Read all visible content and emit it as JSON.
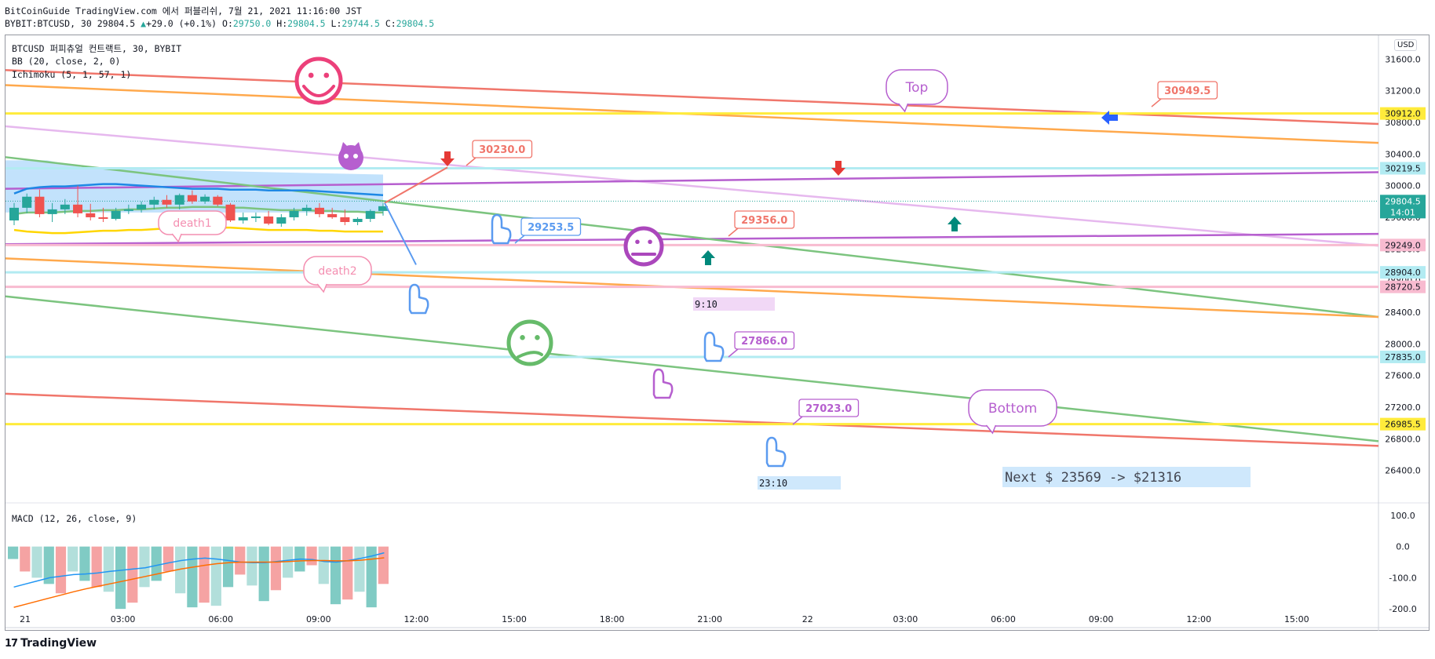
{
  "header": {
    "publish_line": "BitCoinGuide TradingView.com 에서 퍼블리쉬, 7월 21, 2021 11:16:00 JST",
    "symbol": "BYBIT:BTCUSD, 30",
    "last": "29804.5",
    "change_arrow": "▲",
    "change": "+29.0 (+0.1%)",
    "o_label": "O:",
    "o": "29750.0",
    "h_label": "H:",
    "h": "29804.5",
    "l_label": "L:",
    "l": "29744.5",
    "c_label": "C:",
    "c": "29804.5"
  },
  "legend": {
    "title": "BTCUSD 퍼피츄얼 컨트랙트, 30, BYBIT",
    "bb": "BB (20, close, 2, 0)",
    "ichimoku": "Ichimoku (5, 1, 57, 1)",
    "macd": "MACD (12, 26, close, 9)"
  },
  "currency": "USD",
  "brand": {
    "mark": "17",
    "name": "TradingView"
  },
  "colors": {
    "up": "#26a69a",
    "down": "#ef5350",
    "macd_line": "#2196f3",
    "signal_line": "#ff6d00",
    "trend_red": "#f0766b",
    "trend_orange": "#ffa94d",
    "trend_green": "#7cc47f",
    "trend_purple": "#b65fcf",
    "trend_lilac": "#e6b8ee",
    "level_yellow": "#ffeb3b"
  },
  "chart_data": {
    "type": "candlestick",
    "symbol": "BYBIT:BTCUSD",
    "timeframe": "30",
    "ylim": [
      26000,
      31900
    ],
    "y_ticks": [
      26400,
      26800,
      27200,
      27600,
      28000,
      28400,
      28800,
      29200,
      29600,
      30000,
      30400,
      30800,
      31200,
      31600
    ],
    "x_ticks": [
      "21",
      "03:00",
      "06:00",
      "09:00",
      "12:00",
      "15:00",
      "18:00",
      "21:00",
      "22",
      "03:00",
      "06:00",
      "09:00",
      "12:00",
      "15:00"
    ],
    "candles": [
      {
        "o": 29560,
        "h": 29780,
        "l": 29500,
        "c": 29720
      },
      {
        "o": 29720,
        "h": 29900,
        "l": 29650,
        "c": 29860
      },
      {
        "o": 29860,
        "h": 29950,
        "l": 29600,
        "c": 29640
      },
      {
        "o": 29640,
        "h": 29780,
        "l": 29540,
        "c": 29700
      },
      {
        "o": 29700,
        "h": 29830,
        "l": 29640,
        "c": 29760
      },
      {
        "o": 29760,
        "h": 30000,
        "l": 29600,
        "c": 29650
      },
      {
        "o": 29650,
        "h": 29770,
        "l": 29560,
        "c": 29600
      },
      {
        "o": 29600,
        "h": 29720,
        "l": 29540,
        "c": 29580
      },
      {
        "o": 29580,
        "h": 29720,
        "l": 29560,
        "c": 29680
      },
      {
        "o": 29680,
        "h": 29760,
        "l": 29640,
        "c": 29700
      },
      {
        "o": 29700,
        "h": 29800,
        "l": 29660,
        "c": 29760
      },
      {
        "o": 29760,
        "h": 29860,
        "l": 29700,
        "c": 29820
      },
      {
        "o": 29820,
        "h": 29880,
        "l": 29720,
        "c": 29760
      },
      {
        "o": 29760,
        "h": 29900,
        "l": 29700,
        "c": 29880
      },
      {
        "o": 29880,
        "h": 29940,
        "l": 29770,
        "c": 29800
      },
      {
        "o": 29800,
        "h": 29890,
        "l": 29770,
        "c": 29860
      },
      {
        "o": 29860,
        "h": 29880,
        "l": 29740,
        "c": 29760
      },
      {
        "o": 29760,
        "h": 29780,
        "l": 29540,
        "c": 29560
      },
      {
        "o": 29560,
        "h": 29660,
        "l": 29520,
        "c": 29600
      },
      {
        "o": 29600,
        "h": 29660,
        "l": 29540,
        "c": 29610
      },
      {
        "o": 29610,
        "h": 29680,
        "l": 29500,
        "c": 29520
      },
      {
        "o": 29520,
        "h": 29640,
        "l": 29480,
        "c": 29600
      },
      {
        "o": 29600,
        "h": 29720,
        "l": 29560,
        "c": 29680
      },
      {
        "o": 29680,
        "h": 29760,
        "l": 29620,
        "c": 29720
      },
      {
        "o": 29720,
        "h": 29780,
        "l": 29600,
        "c": 29640
      },
      {
        "o": 29640,
        "h": 29720,
        "l": 29580,
        "c": 29600
      },
      {
        "o": 29600,
        "h": 29700,
        "l": 29500,
        "c": 29540
      },
      {
        "o": 29540,
        "h": 29600,
        "l": 29500,
        "c": 29580
      },
      {
        "o": 29580,
        "h": 29700,
        "l": 29540,
        "c": 29680
      },
      {
        "o": 29680,
        "h": 29780,
        "l": 29620,
        "c": 29740
      }
    ],
    "bb_upper": [
      29900,
      29960,
      29980,
      29990,
      29990,
      30000,
      30010,
      30020,
      30020,
      30010,
      30000,
      29990,
      29980,
      29970,
      29960,
      29960,
      29960,
      29950,
      29950,
      29950,
      29940,
      29940,
      29940,
      29940,
      29930,
      29920,
      29910,
      29900,
      29890,
      29880
    ],
    "bb_middle": [
      29640,
      29660,
      29660,
      29660,
      29670,
      29680,
      29680,
      29690,
      29690,
      29700,
      29700,
      29710,
      29720,
      29720,
      29730,
      29730,
      29730,
      29720,
      29720,
      29710,
      29700,
      29690,
      29690,
      29690,
      29680,
      29680,
      29670,
      29670,
      29660,
      29660
    ],
    "bb_lower": [
      29440,
      29420,
      29410,
      29400,
      29400,
      29410,
      29420,
      29430,
      29430,
      29440,
      29440,
      29450,
      29460,
      29460,
      29470,
      29470,
      29470,
      29470,
      29460,
      29450,
      29440,
      29440,
      29440,
      29440,
      29430,
      29430,
      29420,
      29420,
      29420,
      29420
    ],
    "ichimoku_cloud": {
      "top_start": 30320,
      "top_end": 30140,
      "bottom": 29660
    },
    "levels": [
      {
        "price": 30912.0,
        "label": "30912.0",
        "color": "#ffeb3b"
      },
      {
        "price": 30219.5,
        "label": "30219.5",
        "color": "#b2ebf2"
      },
      {
        "price": 29804.5,
        "label": "29804.5",
        "sub": "14:01",
        "color": "#26a69a"
      },
      {
        "price": 29249.0,
        "label": "29249.0",
        "color": "#f8bbd0"
      },
      {
        "price": 28904.0,
        "label": "28904.0",
        "color": "#b2ebf2"
      },
      {
        "price": 28720.5,
        "label": "28720.5",
        "color": "#f8bbd0"
      },
      {
        "price": 27835.0,
        "label": "27835.0",
        "color": "#b2ebf2"
      },
      {
        "price": 26985.5,
        "label": "26985.5",
        "color": "#ffeb3b"
      }
    ],
    "trendlines": [
      {
        "color": "#f0766b",
        "from": 31460,
        "to": 30780
      },
      {
        "color": "#ffa94d",
        "from": 31270,
        "to": 30540
      },
      {
        "color": "#e6b8ee",
        "from": 30750,
        "to": 29240
      },
      {
        "color": "#b65fcf",
        "from": 29960,
        "to": 30170
      },
      {
        "color": "#b65fcf",
        "from": 29260,
        "to": 29390
      },
      {
        "color": "#7cc47f",
        "from": 30360,
        "to": 28340
      },
      {
        "color": "#ffa94d",
        "from": 29080,
        "to": 28340
      },
      {
        "color": "#7cc47f",
        "from": 28600,
        "to": 26770
      },
      {
        "color": "#f0766b",
        "from": 27370,
        "to": 26710
      }
    ],
    "callouts": [
      "30230.0",
      "29253.5",
      "29356.0",
      "30949.5",
      "27866.0",
      "27023.0"
    ],
    "notes": [
      "death1",
      "death2",
      "Top",
      "Bottom",
      "9:10",
      "23:10"
    ],
    "target_text": "Next $ 23569 -> $21316",
    "macd": {
      "ylim": [
        -250,
        130
      ],
      "y_ticks": [
        100.0,
        0.0,
        -100.0,
        -200.0
      ],
      "histogram": [
        -40,
        -80,
        -100,
        -120,
        -150,
        -80,
        -110,
        -130,
        -145,
        -200,
        -180,
        -130,
        -110,
        -80,
        -150,
        -195,
        -180,
        -190,
        -130,
        -90,
        -125,
        -175,
        -140,
        -100,
        -80,
        -60,
        -120,
        -185,
        -170,
        -145,
        -195,
        -120
      ],
      "macd_line": [
        -130,
        -120,
        -110,
        -100,
        -95,
        -90,
        -88,
        -85,
        -80,
        -76,
        -72,
        -68,
        -60,
        -52,
        -45,
        -40,
        -37,
        -40,
        -45,
        -50,
        -52,
        -52,
        -48,
        -44,
        -40,
        -42,
        -48,
        -50,
        -45,
        -38,
        -30,
        -20
      ],
      "signal_line": [
        -195,
        -185,
        -175,
        -165,
        -155,
        -145,
        -136,
        -128,
        -120,
        -112,
        -104,
        -96,
        -88,
        -80,
        -72,
        -66,
        -60,
        -55,
        -52,
        -50,
        -50,
        -50,
        -50,
        -48,
        -46,
        -45,
        -45,
        -46,
        -46,
        -44,
        -40,
        -36
      ],
      "values_labels": [
        "100.0",
        "0.0",
        "-100.0",
        "-200.0"
      ]
    }
  }
}
